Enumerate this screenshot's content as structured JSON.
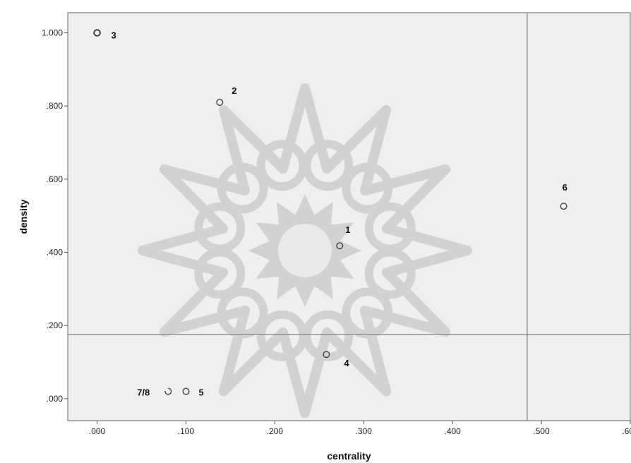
{
  "chart_data": {
    "type": "scatter",
    "xlabel": "centrality",
    "ylabel": "density",
    "xlim": [
      -0.033,
      0.6
    ],
    "ylim": [
      -0.06,
      1.055
    ],
    "x_ticks": [
      0.0,
      0.1,
      0.2,
      0.3,
      0.4,
      0.5,
      0.6
    ],
    "x_tick_labels": [
      ".000",
      ".100",
      ".200",
      ".300",
      ".400",
      ".500",
      ".600"
    ],
    "y_ticks": [
      0.0,
      0.2,
      0.4,
      0.6,
      0.8,
      1.0
    ],
    "y_tick_labels": [
      ".000",
      ".200",
      ".400",
      ".600",
      ".800",
      "1.000"
    ],
    "grid": false,
    "reference_lines": {
      "x": 0.484,
      "y": 0.176
    },
    "points": [
      {
        "label": "1",
        "x": 0.273,
        "y": 0.418
      },
      {
        "label": "2",
        "x": 0.138,
        "y": 0.81
      },
      {
        "label": "3",
        "x": 0.0,
        "y": 1.0
      },
      {
        "label": "4",
        "x": 0.258,
        "y": 0.121
      },
      {
        "label": "5",
        "x": 0.1,
        "y": 0.02
      },
      {
        "label": "6",
        "x": 0.525,
        "y": 0.526
      },
      {
        "label": "7/8",
        "x": 0.08,
        "y": 0.02
      }
    ]
  },
  "colors": {
    "plot_background": "#efefef",
    "point_stroke": "#444444",
    "reference_line": "#888888",
    "watermark": "#d2d2d2"
  }
}
